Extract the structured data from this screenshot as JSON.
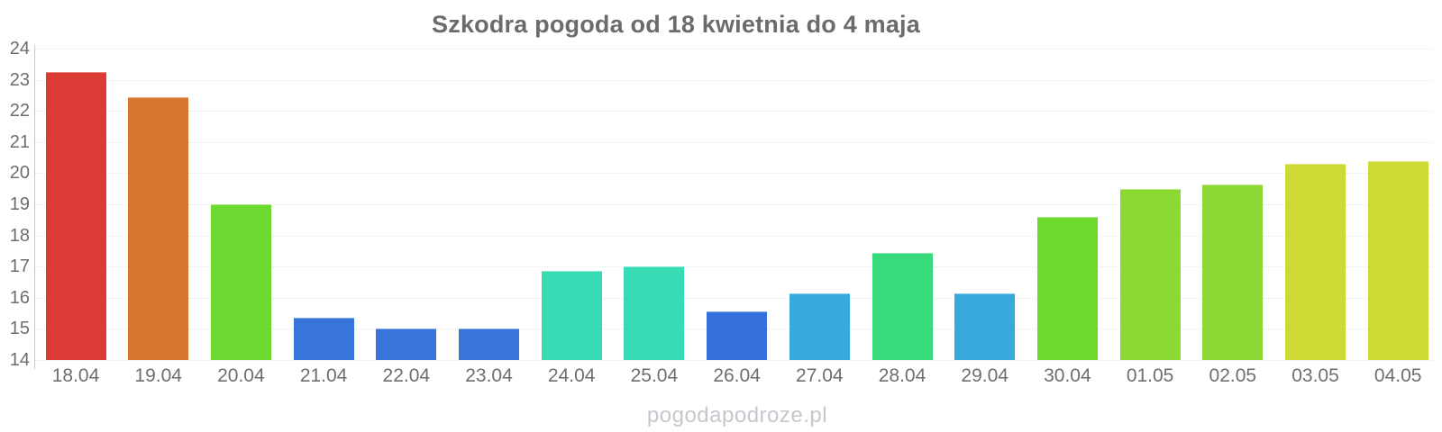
{
  "title": "Szkodra pogoda od 18 kwietnia do 4 maja",
  "watermark": "pogodapodroze.pl",
  "chart_data": {
    "type": "bar",
    "title": "Szkodra pogoda od 18 kwietnia do 4 maja",
    "xlabel": "",
    "ylabel": "",
    "ylim": [
      14,
      24
    ],
    "yticks": [
      24,
      23,
      22,
      21,
      20,
      19,
      18,
      17,
      16,
      15,
      14
    ],
    "grid": "horizontal-dotted",
    "legend_position": "none",
    "categories": [
      "18.04",
      "19.04",
      "20.04",
      "21.04",
      "22.04",
      "23.04",
      "24.04",
      "25.04",
      "26.04",
      "27.04",
      "28.04",
      "29.04",
      "30.04",
      "01.05",
      "02.05",
      "03.05",
      "04.05"
    ],
    "values": [
      23.25,
      22.45,
      19.0,
      15.35,
      15.0,
      15.0,
      16.85,
      17.0,
      15.55,
      16.15,
      17.45,
      16.15,
      18.6,
      19.5,
      19.65,
      20.3,
      20.4
    ],
    "colors": [
      "#db3a35",
      "#d8762f",
      "#6cda30",
      "#3875db",
      "#3875db",
      "#3875db",
      "#37dcb4",
      "#37dcb4",
      "#3471da",
      "#38a9db",
      "#37db7c",
      "#38a9db",
      "#6eda2f",
      "#8cd934",
      "#8cd934",
      "#cdd934",
      "#cdd934"
    ],
    "unit": "°C",
    "axis_color": "#c9c9cd",
    "grid_color": "#e8e8ec",
    "tick_label_color": "#6e6e6e",
    "title_color": "#6b6b6b",
    "watermark_color": "#c5c8cd"
  }
}
